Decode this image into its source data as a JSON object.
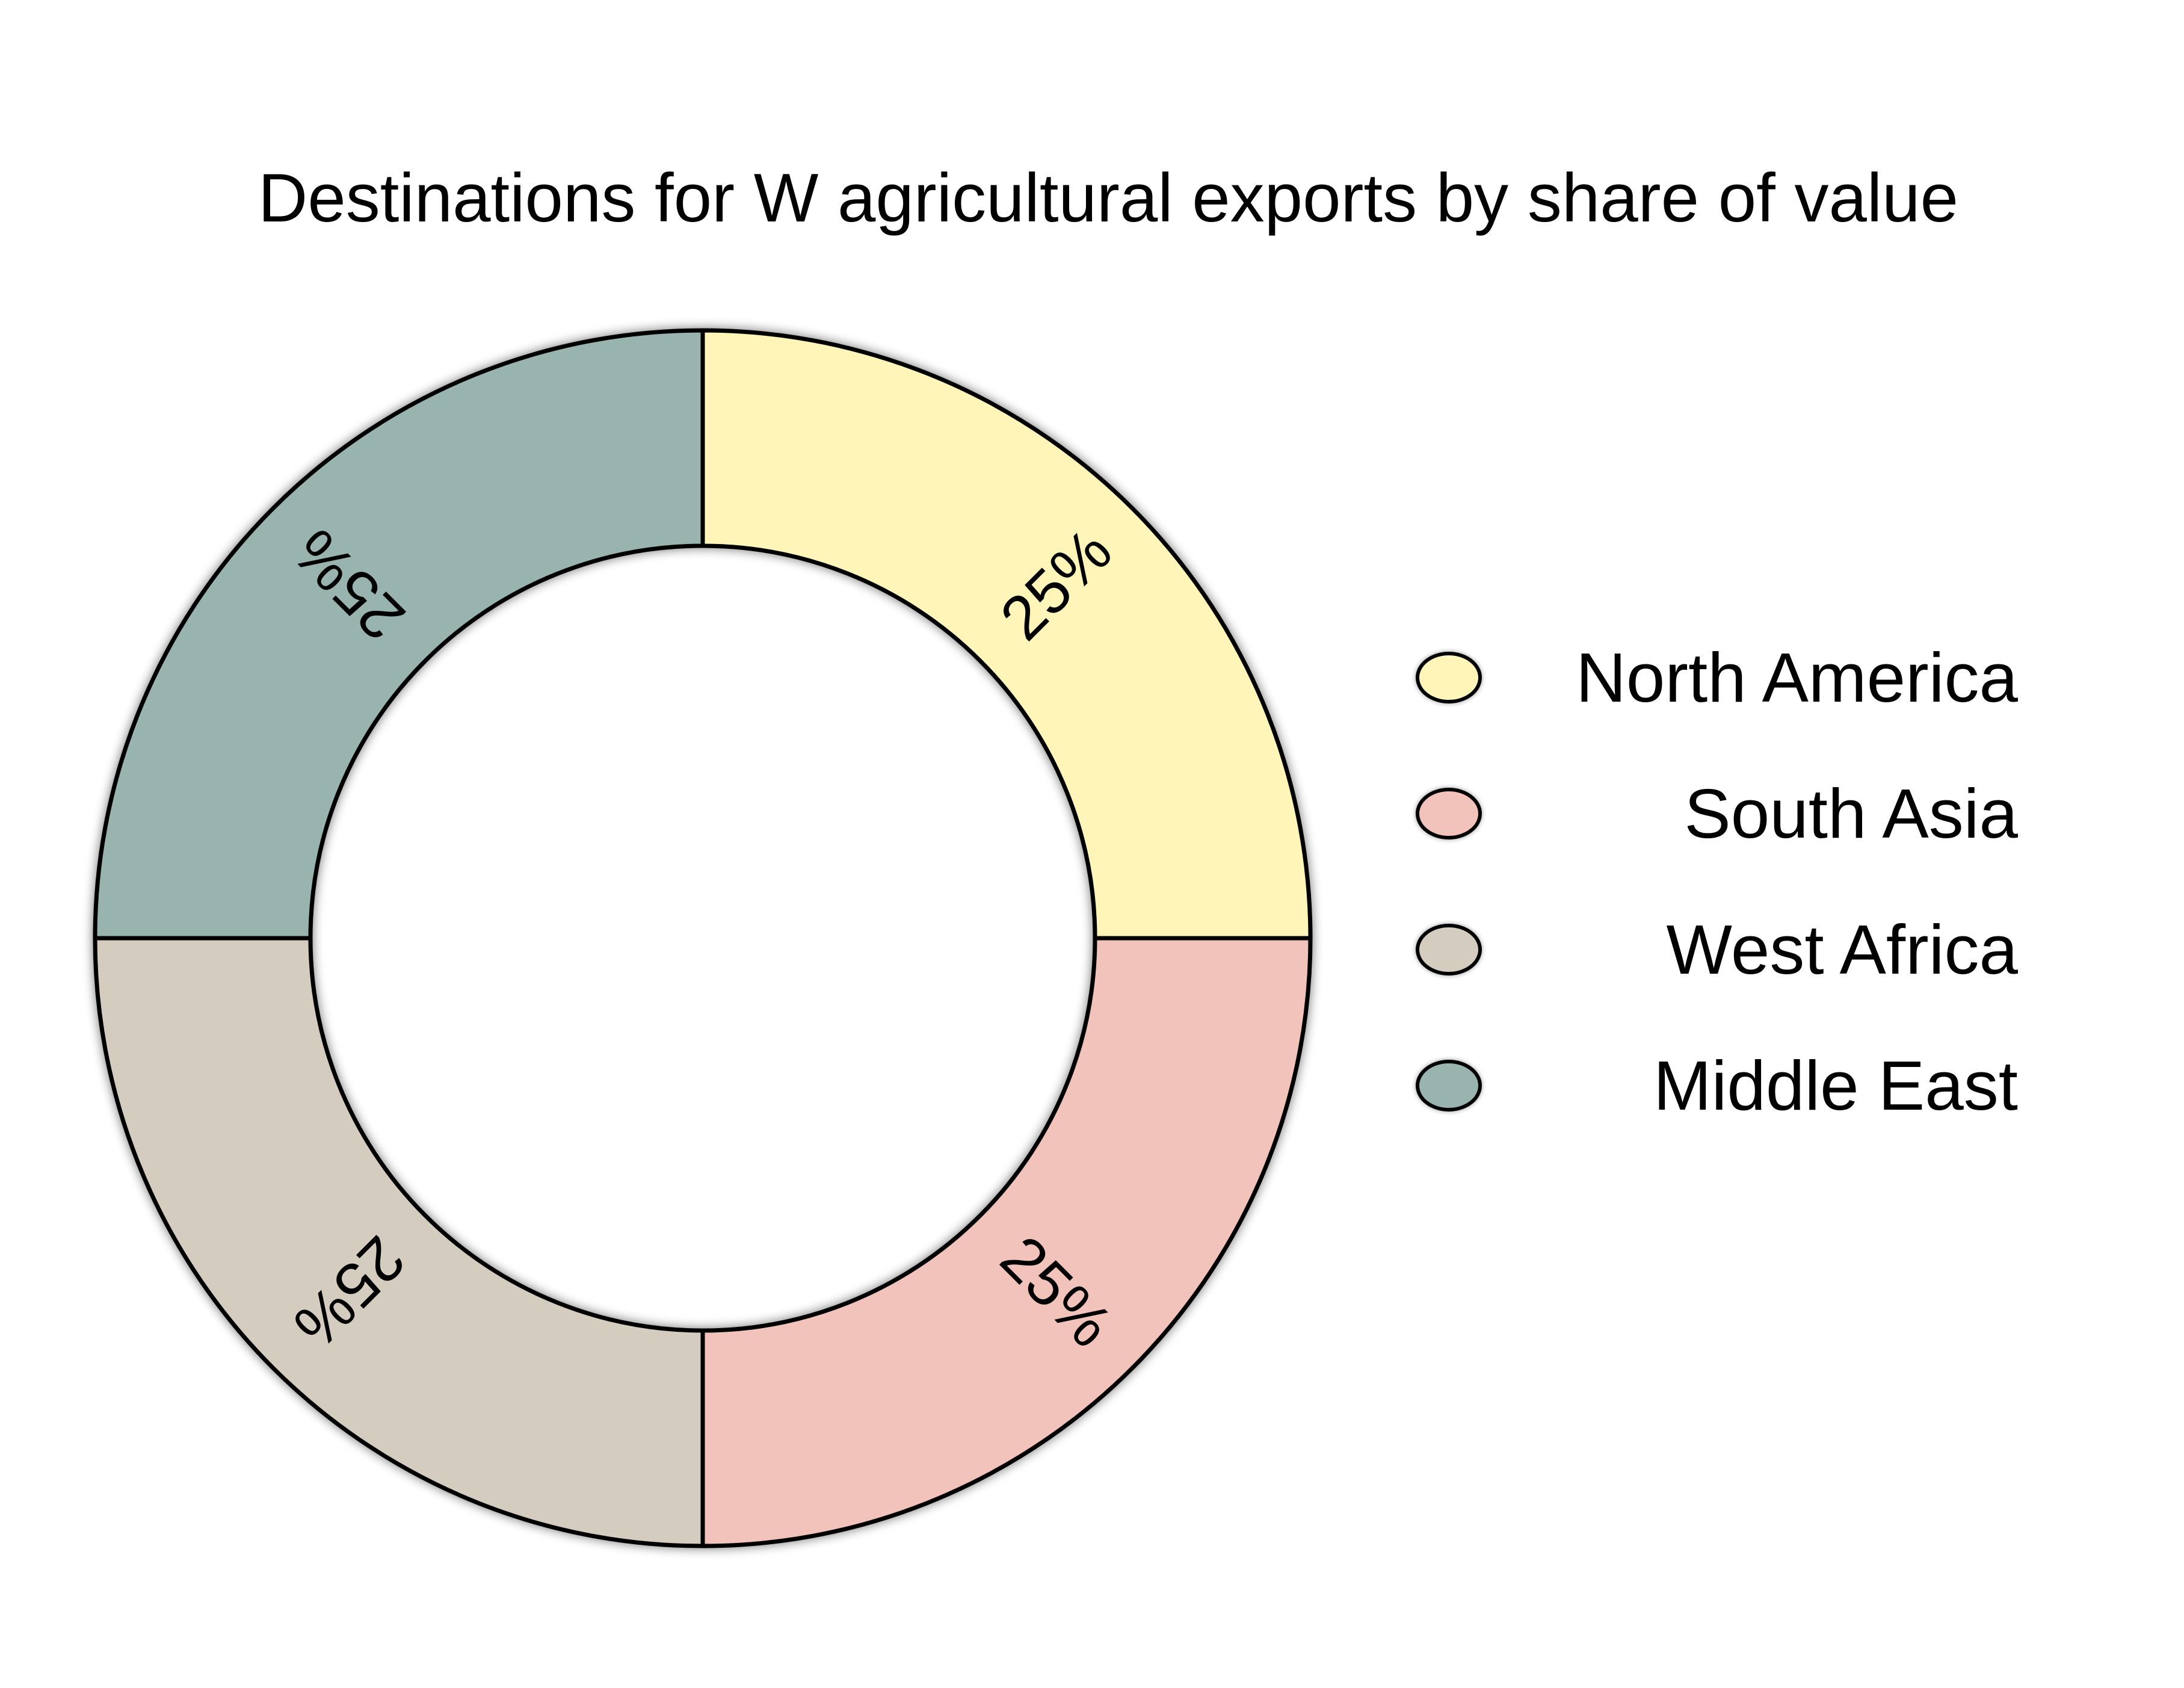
{
  "chart_data": {
    "type": "pie",
    "variant": "donut",
    "title": "Destinations for W agricultural exports by share of value",
    "categories": [
      "North America",
      "South Asia",
      "West Africa",
      "Middle East"
    ],
    "values": [
      25,
      25,
      25,
      25
    ],
    "labels": [
      "25%",
      "25%",
      "25%",
      "25%"
    ],
    "colors": [
      "#FFF5B8",
      "#F2C3BA",
      "#D5CCC0",
      "#99B4AF"
    ],
    "legend": {
      "position": "right",
      "entries": [
        "North America",
        "South Asia",
        "West Africa",
        "Middle East"
      ]
    },
    "start_angle": "top, proceeding clockwise"
  }
}
